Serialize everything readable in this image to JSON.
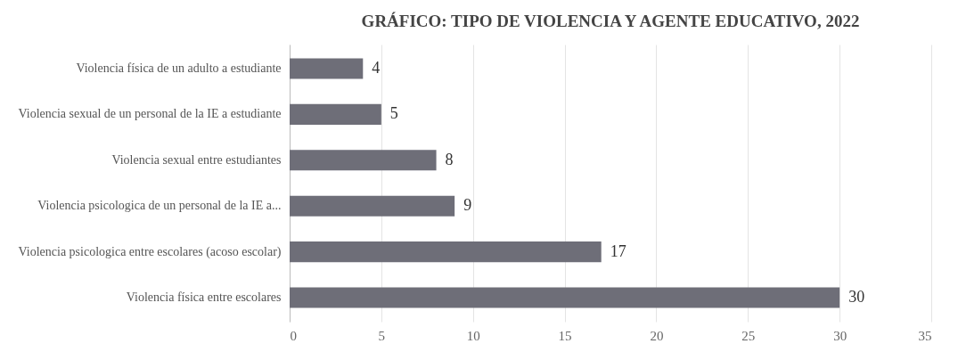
{
  "chart_data": {
    "type": "bar",
    "orientation": "horizontal",
    "title": "GRÁFICO: TIPO DE VIOLENCIA Y AGENTE EDUCATIVO, 2022",
    "categories": [
      "Violencia física de un adulto a estudiante",
      "Violencia sexual de un personal de la IE a estudiante",
      "Violencia sexual entre estudiantes",
      "Violencia psicologica de un personal de la IE a...",
      "Violencia psicologica entre escolares (acoso escolar)",
      "Violencia física entre escolares"
    ],
    "values": [
      4,
      5,
      8,
      9,
      17,
      30
    ],
    "color": "#6e6e78",
    "xlim": [
      0,
      35
    ],
    "xticks": [
      0,
      5,
      10,
      15,
      20,
      25,
      30,
      35
    ],
    "grid": "x",
    "data_labels": true
  }
}
